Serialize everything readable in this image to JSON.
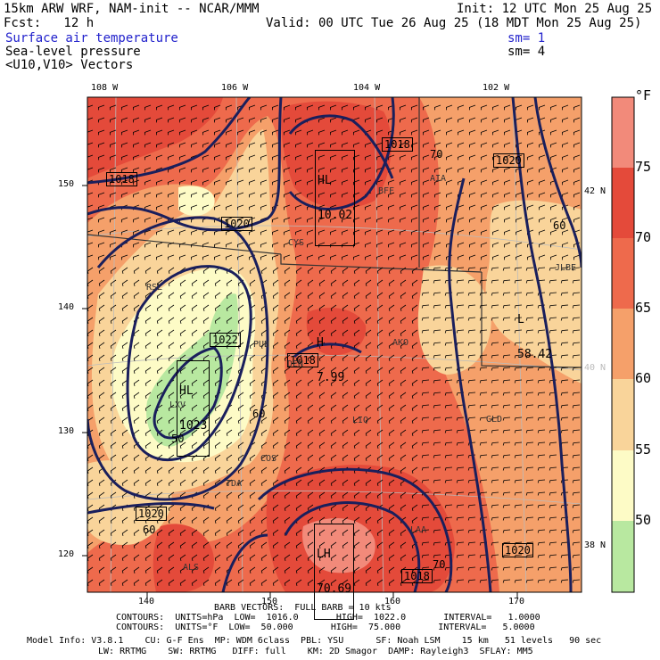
{
  "header": {
    "model_line": "15km ARW WRF, NAM-init -- NCAR/MMM",
    "init": "Init: 12 UTC Mon 25 Aug 25",
    "fcst": "Fcst:   12 h",
    "valid": "Valid: 00 UTC Tue 26 Aug 25 (18 MDT Mon 25 Aug 25)",
    "field1": "Surface air temperature",
    "field2": "Sea-level pressure",
    "field3": "<U10,V10> Vectors",
    "sm1": "sm= 1",
    "sm2": "sm= 4"
  },
  "colors": {
    "t50": "#b8e8a0",
    "t55": "#fdfbc6",
    "t60": "#f9d49a",
    "t65": "#f5a06a",
    "t70": "#ee6a4c",
    "t75": "#e44a3a",
    "t80": "#f28a7a",
    "isobar": "#1a1f5c",
    "latlon": "#bbbbbb",
    "border": "#333333"
  },
  "chart_data": {
    "type": "contour-map",
    "x_ticks": [
      "140",
      "150",
      "160",
      "170"
    ],
    "y_ticks": [
      "120",
      "130",
      "140",
      "150"
    ],
    "lon_labels": [
      "108 W",
      "106 W",
      "104 W",
      "102 W"
    ],
    "lat_labels": [
      "42 N",
      "40 N",
      "38 N"
    ],
    "colorbar": {
      "unit": "°F",
      "labels": [
        "75",
        "70",
        "65",
        "60",
        "55",
        "50"
      ],
      "bins_top_to_bottom": [
        "80",
        "75",
        "70",
        "65",
        "60",
        "55",
        "50"
      ]
    },
    "contour_labels": [
      {
        "text": "1018",
        "boxed": true
      },
      {
        "text": "1020",
        "boxed": true
      },
      {
        "text": "1018",
        "boxed": true
      },
      {
        "text": "1020",
        "boxed": true
      },
      {
        "text": "1022",
        "boxed": true
      },
      {
        "text": "1018",
        "boxed": true
      },
      {
        "text": "1020",
        "boxed": true
      },
      {
        "text": "1020",
        "boxed": true
      },
      {
        "text": "1018",
        "boxed": true
      },
      {
        "text": "70",
        "boxed": false
      },
      {
        "text": "60",
        "boxed": false
      },
      {
        "text": "60",
        "boxed": false
      },
      {
        "text": "50",
        "boxed": false
      },
      {
        "text": "60",
        "boxed": false
      },
      {
        "text": "70",
        "boxed": false
      }
    ],
    "highs_lows": [
      {
        "label": "HL",
        "value": "10.02"
      },
      {
        "label": "HL",
        "value": "1023"
      },
      {
        "label": "H",
        "value": "7.99"
      },
      {
        "label": "L",
        "value": "58.42"
      },
      {
        "label": "LH",
        "value": "70.69"
      }
    ],
    "station_ids": [
      "CYS",
      "RSL",
      "DEN",
      "AKO",
      "LXV",
      "ALS",
      "GLD",
      "BFF",
      "AIA",
      "LAA",
      "JLBE",
      "LIO",
      "COS",
      "TDA",
      "PUB"
    ]
  },
  "footer": {
    "barbs": "BARB VECTORS:  FULL BARB = 10 kts",
    "contours1": "CONTOURS:  UNITS=hPa  LOW=  1016.0       HIGH=  1022.0       INTERVAL=   1.0000",
    "contours2": "CONTOURS:  UNITS=°F  LOW=  50.000       HIGH=  75.000       INTERVAL=   5.0000",
    "model1": "Model Info: V3.8.1    CU: G-F Ens  MP: WDM 6class  PBL: YSU      SF: Noah LSM    15 km   51 levels   90 sec",
    "model2": "LW: RRTMG    SW: RRTMG   DIFF: full    KM: 2D Smagor  DAMP: Rayleigh3  SFLAY: MM5"
  }
}
